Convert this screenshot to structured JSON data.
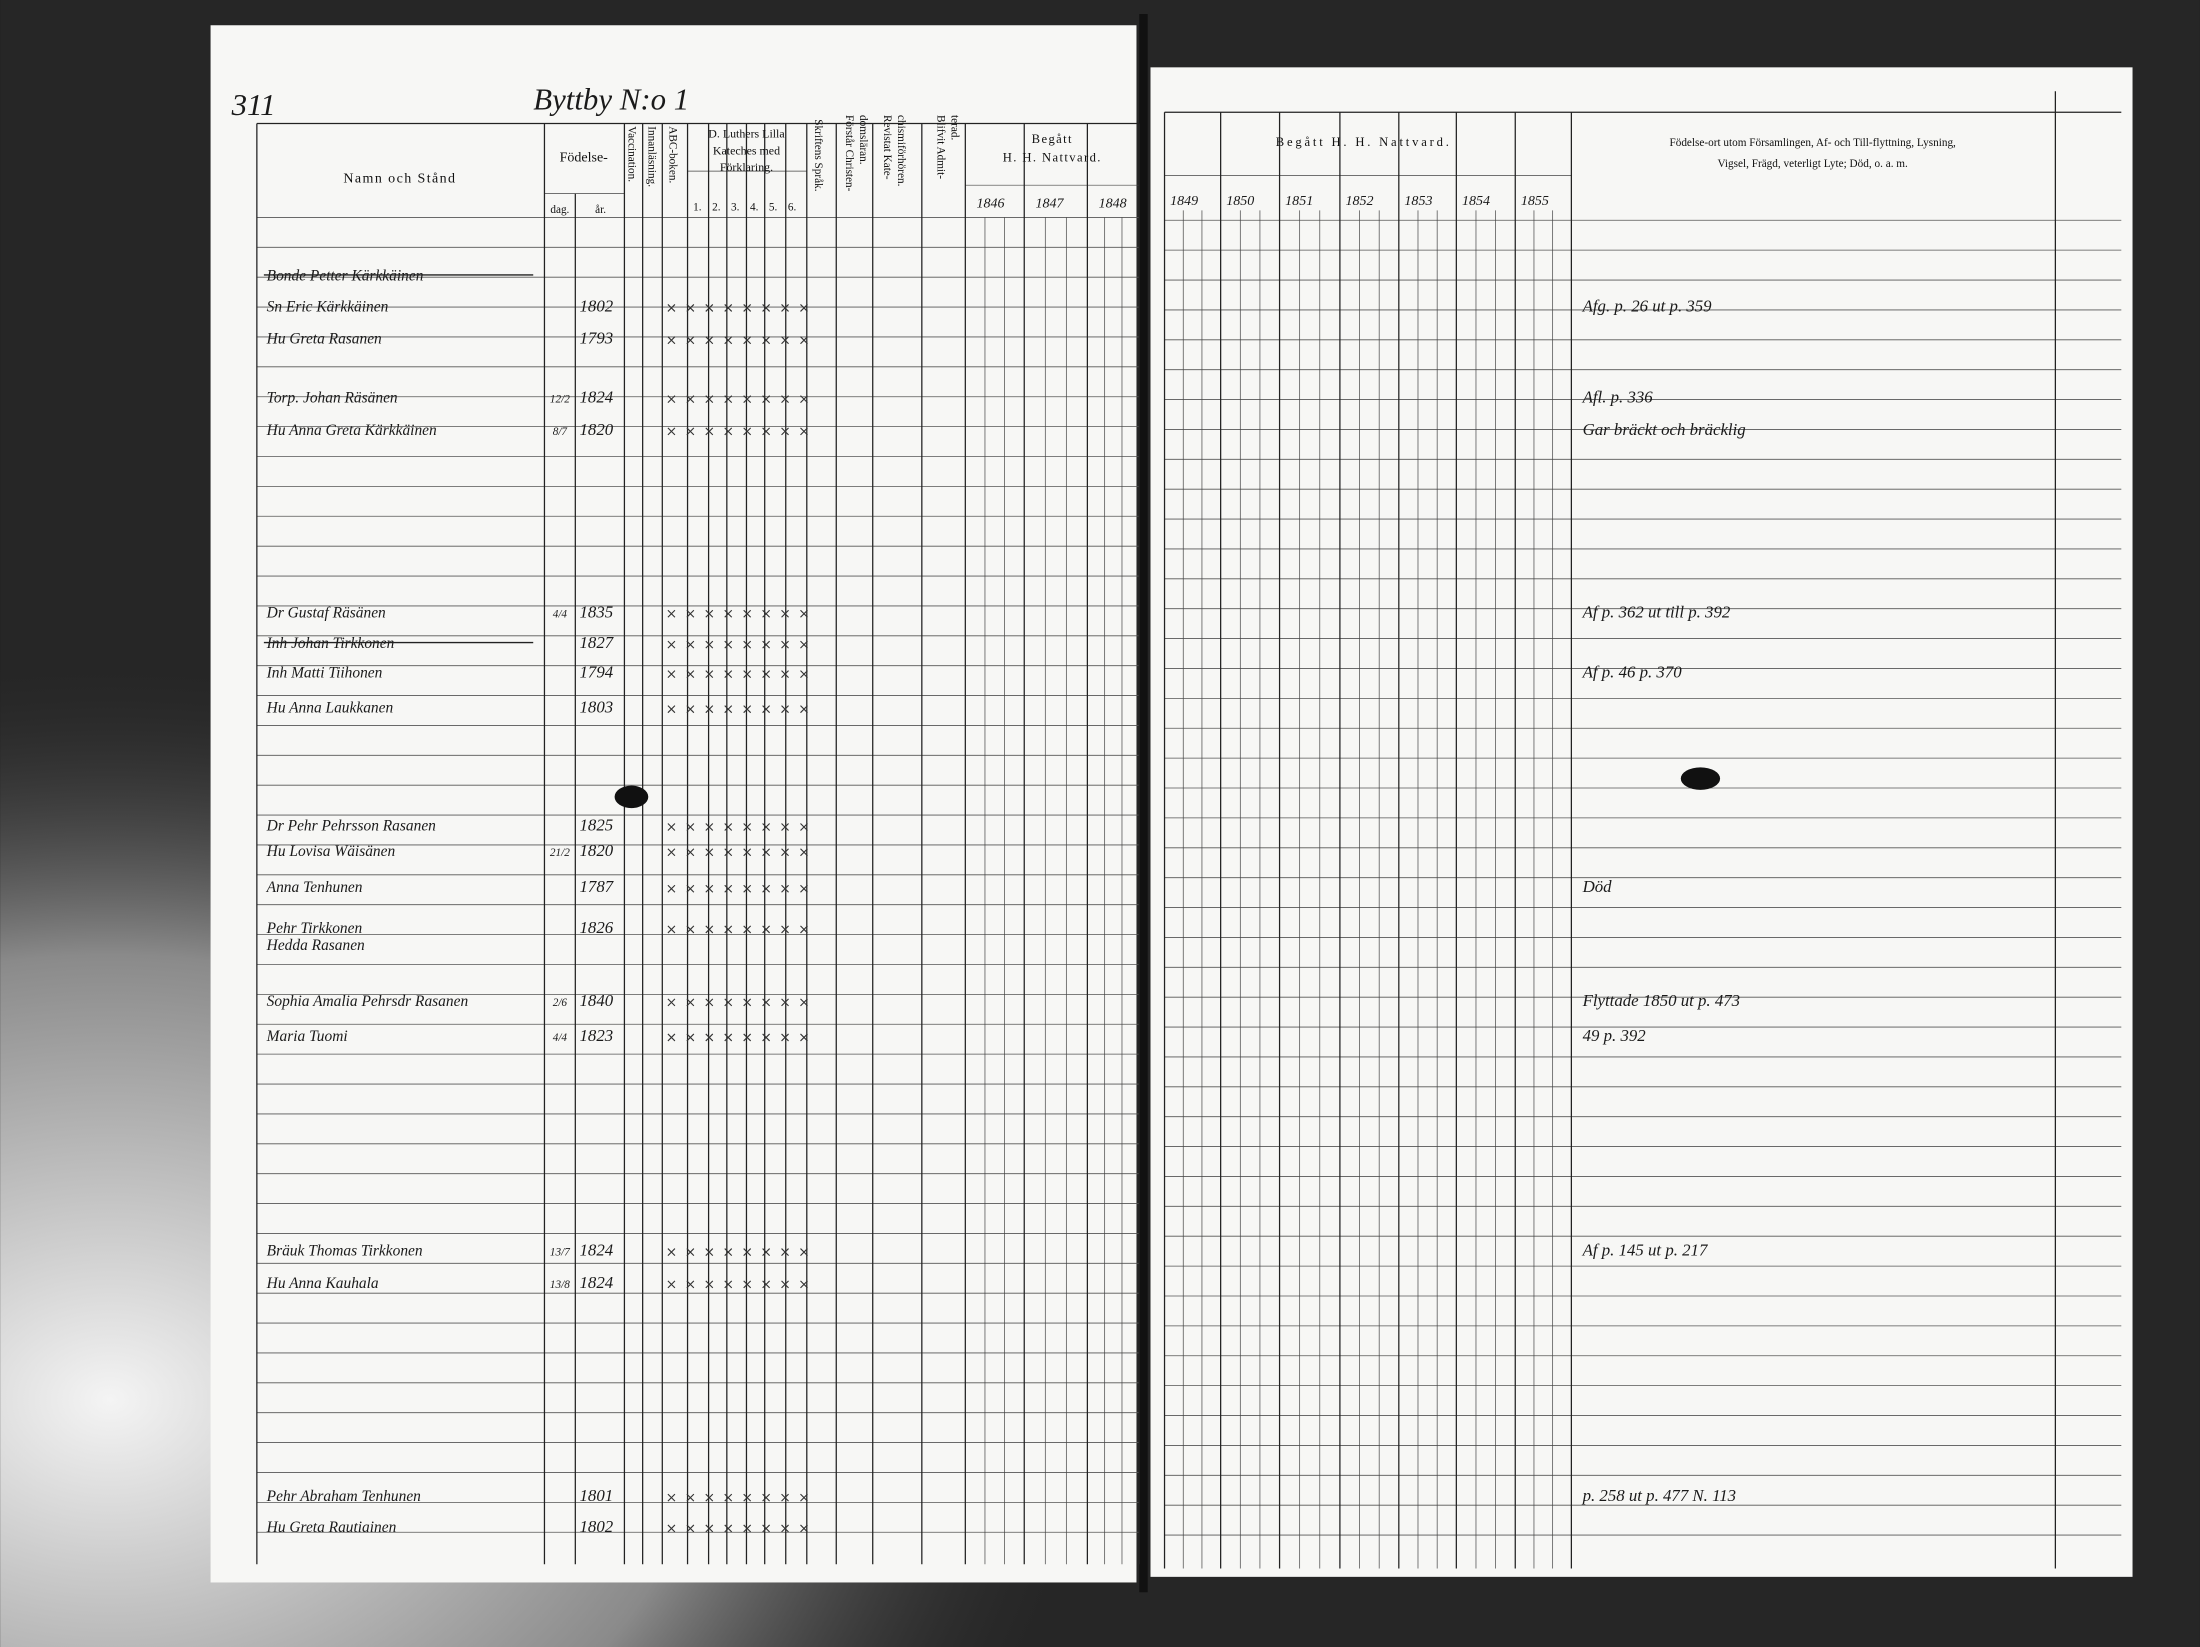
{
  "left_page": {
    "page_number": "311",
    "village": "Byttby N:o 1",
    "headers": {
      "name": "Namn och Stånd",
      "birth": "Födelse-",
      "day": "dag.",
      "year": "år.",
      "vaccination": "Vaccination.",
      "reading": "Innanläsning.",
      "abc": "ABC-boken.",
      "catechism": [
        "D. Luthers Lilla",
        "Kateches med",
        "Förklaring."
      ],
      "catechism_parts": [
        "1.",
        "2.",
        "3.",
        "4.",
        "5.",
        "6."
      ],
      "scripture": "Skriftens Språk.",
      "christianity": [
        "Förstår Christen-",
        "domsläran."
      ],
      "revisited": [
        "Revistat Kate-",
        "chismiförhören."
      ],
      "admitted": [
        "Blifvit Admit-",
        "terad."
      ],
      "communion": [
        "Begått",
        "H. H. Nattvard."
      ],
      "years": [
        "1846",
        "1847",
        "1848"
      ]
    },
    "entries": [
      {
        "name": "Bonde Petter Kärkkäinen"
      },
      {
        "name": "Sn Eric Kärkkäinen",
        "year": "1802"
      },
      {
        "name": "Hu Greta Rasanen",
        "year": "1793"
      },
      {
        "name": "Torp. Johan Räsänen",
        "day": "12/2",
        "year": "1824"
      },
      {
        "name": "Hu Anna Greta Kärkkäinen",
        "day": "8/7",
        "year": "1820"
      },
      {
        "name": "Dr Gustaf Räsänen",
        "day": "4/4",
        "year": "1835"
      },
      {
        "name": "Inh Johan Tirkkonen",
        "year": "1827"
      },
      {
        "name": "Inh Matti Tiihonen",
        "year": "1794"
      },
      {
        "name": "Hu Anna Laukkanen",
        "year": "1803"
      },
      {
        "name": "Dr Pehr Pehrsson Rasanen",
        "year": "1825"
      },
      {
        "name": "Hu Lovisa Wäisänen",
        "day": "21/2",
        "year": "1820"
      },
      {
        "name": "Anna Tenhunen",
        "year": "1787"
      },
      {
        "name": "Pehr Tirkkonen",
        "year": "1826"
      },
      {
        "name": "Hedda Rasanen"
      },
      {
        "name": "Sophia Amalia Pehrsdr Rasanen",
        "day": "2/6",
        "year": "1840"
      },
      {
        "name": "Maria Tuomi",
        "day": "4/4",
        "year": "1823"
      },
      {
        "name": "Bräuk Thomas Tirkkonen",
        "day": "13/7",
        "year": "1824"
      },
      {
        "name": "Hu Anna Kauhala",
        "day": "13/8",
        "year": "1824"
      },
      {
        "name": "Pehr Abraham Tenhunen",
        "year": "1801"
      },
      {
        "name": "Hu Greta Rautiainen",
        "year": "1802"
      }
    ]
  },
  "right_page": {
    "headers": {
      "communion": "Begått H. H. Nattvard.",
      "years": [
        "1849",
        "1850",
        "1851",
        "1852",
        "1853",
        "1854",
        "1855"
      ],
      "remarks": [
        "Födelse-ort utom Församlingen, Af- och Till-flyttning, Lysning,",
        "Vigsel, Frägd, veterligt Lyte; Död, o. a. m."
      ]
    },
    "remarks": [
      {
        "row": "Sn Eric Kärkkäinen",
        "text": "Afg. p. 26 ut p. 359"
      },
      {
        "row": "Torp. Johan Räsänen",
        "text": "Afl. p. 336"
      },
      {
        "row": "Hu Anna Greta Kärkkäinen",
        "text": "Gar bräckt och bräcklig"
      },
      {
        "row": "Dr Gustaf Räsänen",
        "text": "Af p. 362 ut till p. 392"
      },
      {
        "row": "Inh Matti Tiihonen",
        "text": "Af p. 46 p. 370"
      },
      {
        "row": "Anna Tenhunen",
        "text": "Död"
      },
      {
        "row": "Sophia Amalia Pehrsdr Rasanen",
        "text": "Flyttade 1850 ut p. 473"
      },
      {
        "row": "Maria Tuomi",
        "text": "49 p. 392"
      },
      {
        "row": "Bräuk Thomas Tirkkonen",
        "text": "Af p. 145 ut p. 217"
      },
      {
        "row": "Pehr Abraham Tenhunen",
        "text": "p. 258 ut p. 477 N. 113"
      }
    ]
  }
}
